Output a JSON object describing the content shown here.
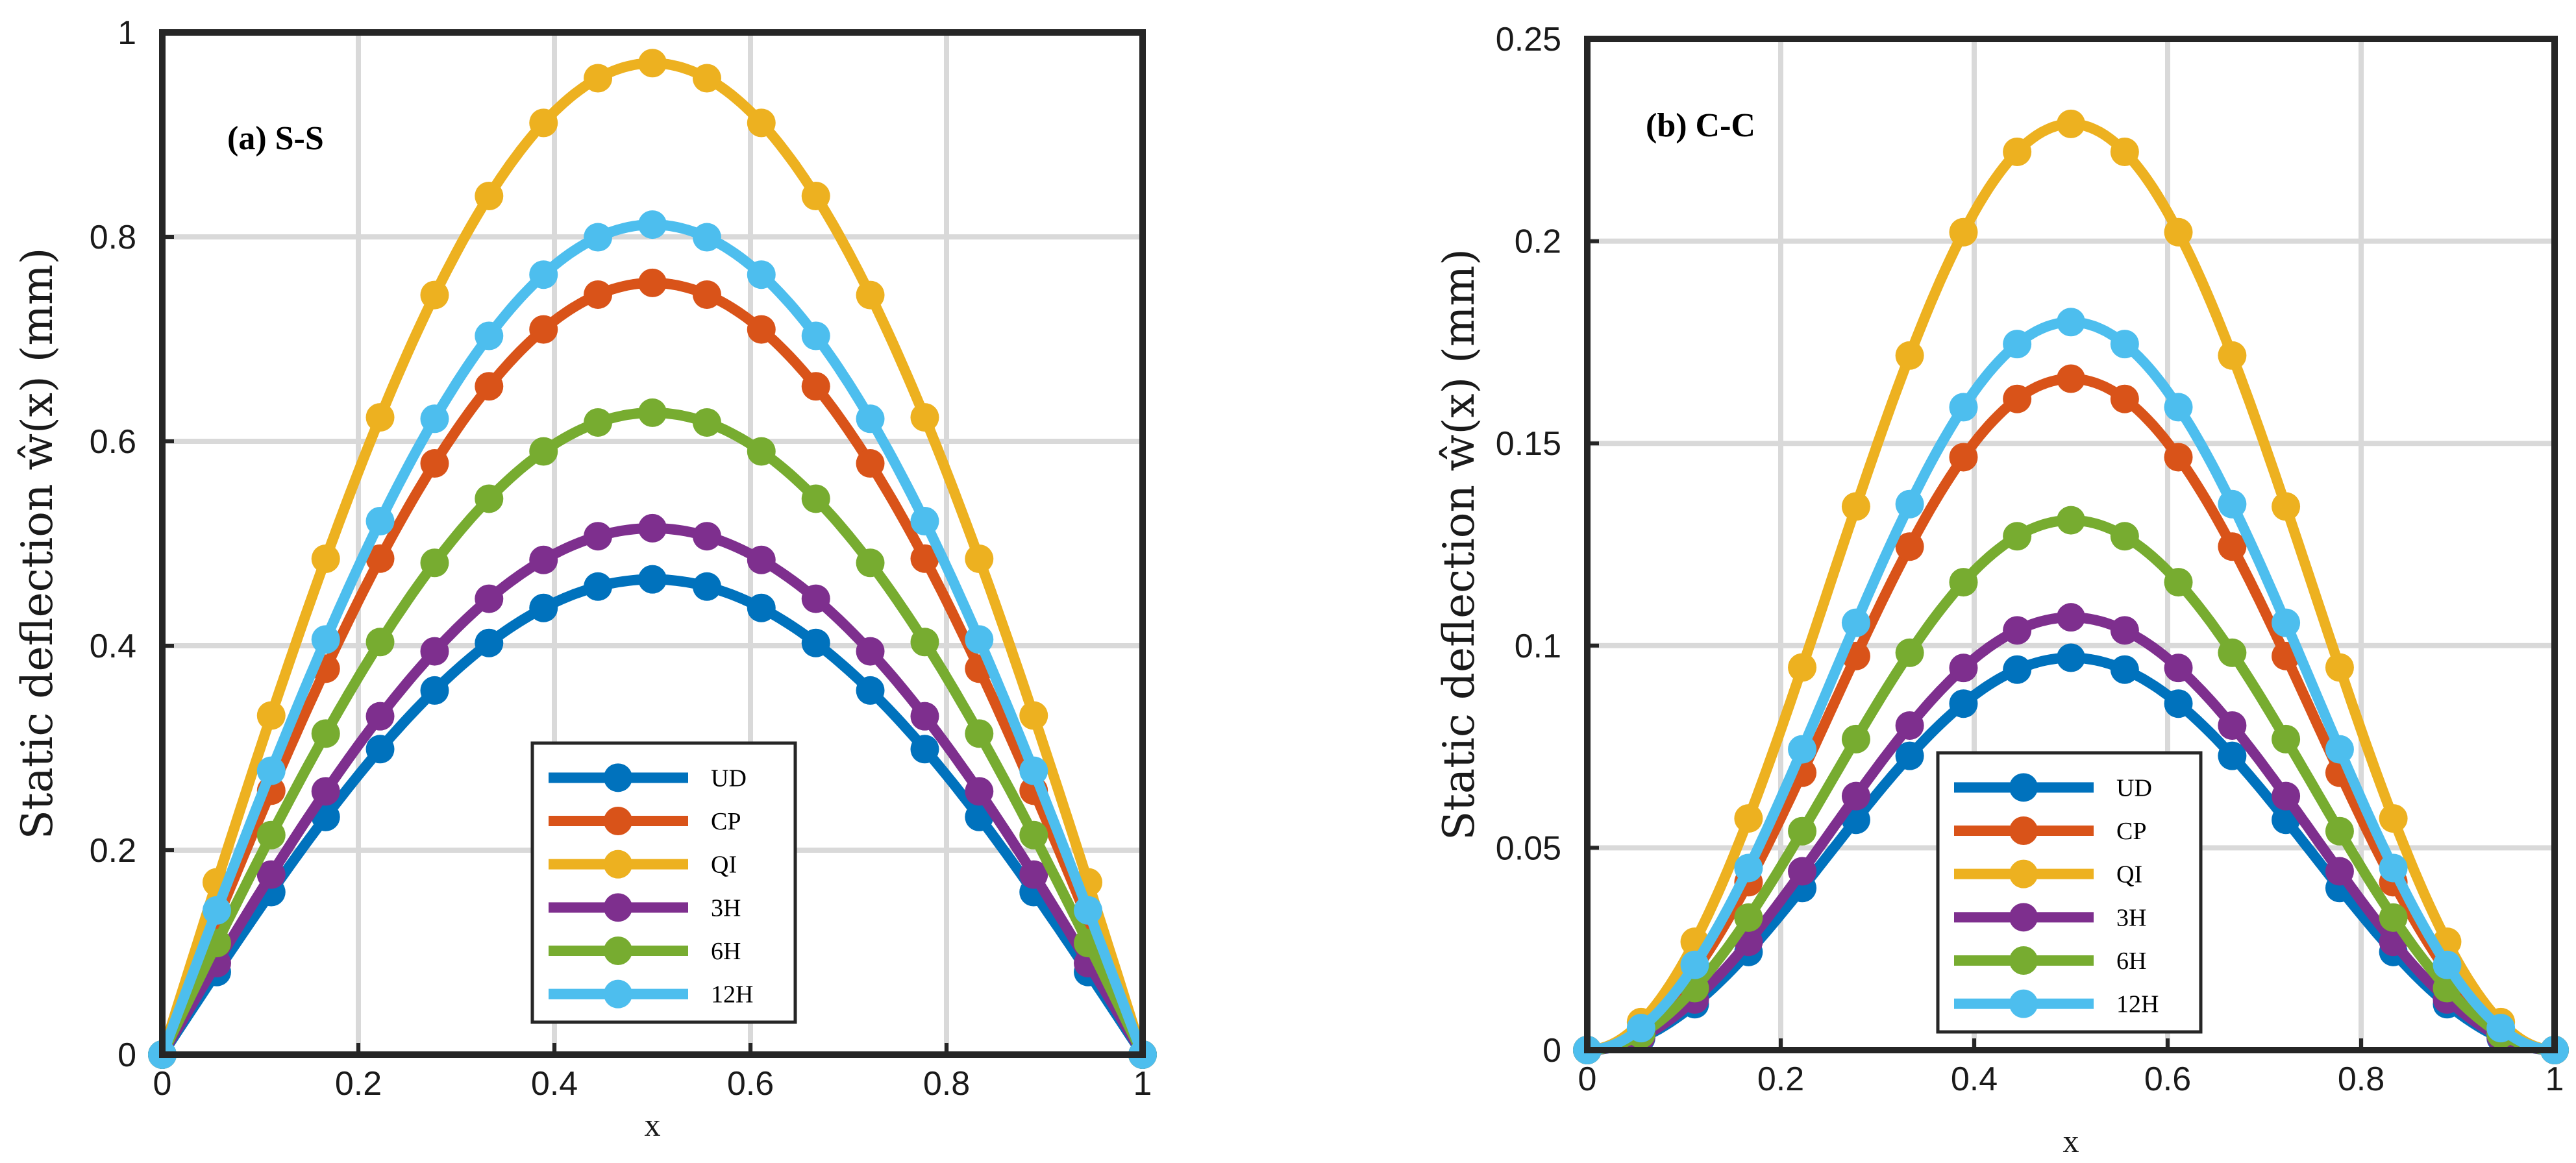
{
  "figure": {
    "panels": [
      {
        "panel_label": "(a) S-S",
        "ylabel": "Static deflection ŵ(x) (mm)",
        "xlabel": "x",
        "xticks": [
          "0",
          "0.2",
          "0.4",
          "0.6",
          "0.8",
          "1"
        ],
        "yticks": [
          "0",
          "0.2",
          "0.4",
          "0.6",
          "0.8",
          "1"
        ]
      },
      {
        "panel_label": "(b) C-C",
        "ylabel": "Static deflection ŵ(x) (mm)",
        "xlabel": "x",
        "xticks": [
          "0",
          "0.2",
          "0.4",
          "0.6",
          "0.8",
          "1"
        ],
        "yticks": [
          "0",
          "0.05",
          "0.1",
          "0.15",
          "0.2",
          "0.25"
        ]
      }
    ]
  },
  "chart_data": [
    {
      "type": "line",
      "title": "(a) S-S",
      "xlabel": "x",
      "ylabel": "Static deflection ŵ(x) (mm)",
      "xlim": [
        0,
        1
      ],
      "ylim": [
        0,
        1
      ],
      "grid": true,
      "legend_position": "bottom-center",
      "x": [
        0,
        0.0556,
        0.1111,
        0.1667,
        0.2222,
        0.2778,
        0.3333,
        0.3889,
        0.4444,
        0.5,
        0.5556,
        0.6111,
        0.6667,
        0.7222,
        0.7778,
        0.8333,
        0.8889,
        0.9444,
        1
      ],
      "series": [
        {
          "name": "UD",
          "color": "#0072BD",
          "peak": 0.465
        },
        {
          "name": "CP",
          "color": "#D95319",
          "peak": 0.755
        },
        {
          "name": "QI",
          "color": "#EDB120",
          "peak": 0.97
        },
        {
          "name": "3H",
          "color": "#7E2F8E",
          "peak": 0.515
        },
        {
          "name": "6H",
          "color": "#77AC30",
          "peak": 0.628
        },
        {
          "name": "12H",
          "color": "#4DBEEE",
          "peak": 0.812
        }
      ]
    },
    {
      "type": "line",
      "title": "(b) C-C",
      "xlabel": "x",
      "ylabel": "Static deflection ŵ(x) (mm)",
      "xlim": [
        0,
        1
      ],
      "ylim": [
        0,
        0.25
      ],
      "grid": true,
      "legend_position": "bottom-center",
      "x": [
        0,
        0.0556,
        0.1111,
        0.1667,
        0.2222,
        0.2778,
        0.3333,
        0.3889,
        0.4444,
        0.5,
        0.5556,
        0.6111,
        0.6667,
        0.7222,
        0.7778,
        0.8333,
        0.8889,
        0.9444,
        1
      ],
      "series": [
        {
          "name": "UD",
          "color": "#0072BD",
          "peak": 0.097
        },
        {
          "name": "CP",
          "color": "#D95319",
          "peak": 0.166
        },
        {
          "name": "QI",
          "color": "#EDB120",
          "peak": 0.229
        },
        {
          "name": "3H",
          "color": "#7E2F8E",
          "peak": 0.107
        },
        {
          "name": "6H",
          "color": "#77AC30",
          "peak": 0.131
        },
        {
          "name": "12H",
          "color": "#4DBEEE",
          "peak": 0.18
        }
      ]
    }
  ]
}
